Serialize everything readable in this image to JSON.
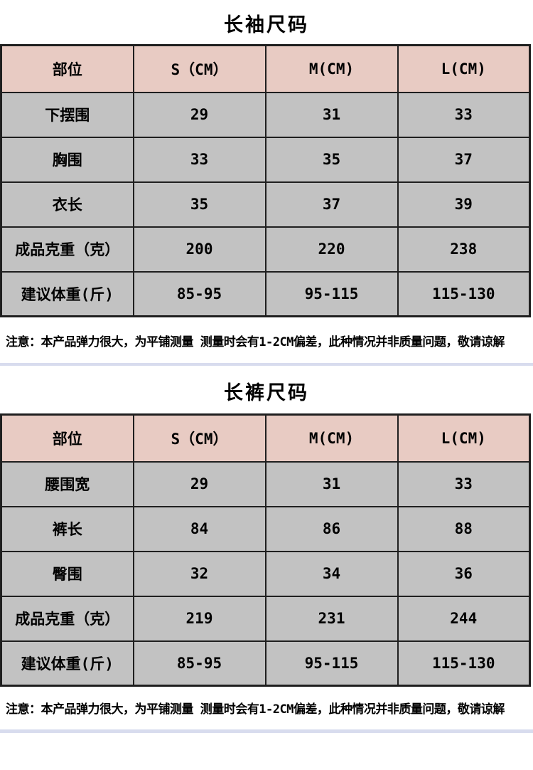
{
  "colors": {
    "header_bg": "#e8cbc3",
    "row_bg": "#c2c2c2",
    "border_color": "#1f1f1f",
    "divider_color": "#d8dcee",
    "text_color": "#000000"
  },
  "tables": [
    {
      "title": "长袖尺码",
      "columns": [
        "部位",
        "S（CM）",
        "M(CM)",
        "L(CM)"
      ],
      "rows": [
        {
          "label": "下摆围",
          "values": [
            "29",
            "31",
            "33"
          ]
        },
        {
          "label": "胸围",
          "values": [
            "33",
            "35",
            "37"
          ]
        },
        {
          "label": "衣长",
          "values": [
            "35",
            "37",
            "39"
          ]
        },
        {
          "label": "成品克重（克）",
          "values": [
            "200",
            "220",
            "238"
          ]
        },
        {
          "label": "建议体重(斤)",
          "values": [
            "85-95",
            "95-115",
            "115-130"
          ]
        }
      ],
      "note": "注意：本产品弹力很大，为平铺测量 测量时会有1-2CM偏差，此种情况并非质量问题，敬请谅解"
    },
    {
      "title": "长裤尺码",
      "columns": [
        "部位",
        "S（CM）",
        "M(CM)",
        "L(CM)"
      ],
      "rows": [
        {
          "label": "腰围宽",
          "values": [
            "29",
            "31",
            "33"
          ]
        },
        {
          "label": "裤长",
          "values": [
            "84",
            "86",
            "88"
          ]
        },
        {
          "label": "臀围",
          "values": [
            "32",
            "34",
            "36"
          ]
        },
        {
          "label": "成品克重（克）",
          "values": [
            "219",
            "231",
            "244"
          ]
        },
        {
          "label": "建议体重(斤)",
          "values": [
            "85-95",
            "95-115",
            "115-130"
          ]
        }
      ],
      "note": "注意：本产品弹力很大，为平铺测量 测量时会有1-2CM偏差，此种情况并非质量问题，敬请谅解"
    }
  ]
}
